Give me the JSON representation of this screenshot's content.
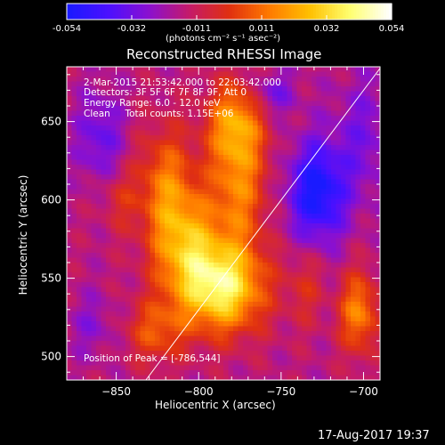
{
  "chart_data": {
    "type": "heatmap",
    "title": "Reconstructed RHESSI Image",
    "xlabel": "Heliocentric X (arcsec)",
    "ylabel": "Heliocentric Y (arcsec)",
    "xlim": [
      -880,
      -690
    ],
    "ylim": [
      485,
      685
    ],
    "xticks": [
      -850,
      -800,
      -750,
      -700
    ],
    "yticks": [
      500,
      550,
      600,
      650
    ],
    "colorbar": {
      "min": -0.054,
      "max": 0.054,
      "ticks": [
        "-0.054",
        "-0.032",
        "-0.011",
        "0.011",
        "0.032",
        "0.054"
      ],
      "label": "(photons cm⁻² s⁻¹ asec⁻²)",
      "colors": [
        "#1a1aff",
        "#4b10ff",
        "#8a10d0",
        "#c41a6a",
        "#e03010",
        "#ff7a00",
        "#ffc000",
        "#ffff70",
        "#ffffff"
      ]
    },
    "annotations": [
      "2-Mar-2015 21:53:42.000 to 22:03:42.000",
      "Detectors: 3F 5F 6F 7F 8F 9F, Att 0",
      "Energy Range: 6.0 - 12.0 keV",
      "Clean     Total counts: 1.15E+06"
    ],
    "peak_text": "Position of Peak = [-786,544]",
    "peak": [
      -786,
      544
    ],
    "limb_line": {
      "from": [
        -832,
        485
      ],
      "to": [
        -690,
        684
      ]
    },
    "sources": [
      {
        "x": -786,
        "y": 544,
        "sx": 18,
        "sy": 20,
        "amp": 0.054
      },
      {
        "x": -808,
        "y": 572,
        "sx": 14,
        "sy": 24,
        "amp": 0.034
      },
      {
        "x": -776,
        "y": 610,
        "sx": 12,
        "sy": 30,
        "amp": 0.03
      },
      {
        "x": -778,
        "y": 650,
        "sx": 12,
        "sy": 18,
        "amp": 0.03
      },
      {
        "x": -820,
        "y": 610,
        "sx": 12,
        "sy": 26,
        "amp": 0.026
      },
      {
        "x": -826,
        "y": 516,
        "sx": 12,
        "sy": 14,
        "amp": 0.022
      },
      {
        "x": -703,
        "y": 528,
        "sx": 8,
        "sy": 18,
        "amp": 0.032
      },
      {
        "x": -735,
        "y": 545,
        "sx": 8,
        "sy": 18,
        "amp": 0.012
      },
      {
        "x": -848,
        "y": 600,
        "sx": 8,
        "sy": 14,
        "amp": 0.012
      },
      {
        "x": -728,
        "y": 605,
        "sx": 12,
        "sy": 22,
        "amp": -0.04
      },
      {
        "x": -755,
        "y": 668,
        "sx": 10,
        "sy": 10,
        "amp": -0.016
      },
      {
        "x": -860,
        "y": 640,
        "sx": 10,
        "sy": 20,
        "amp": -0.018
      },
      {
        "x": -700,
        "y": 640,
        "sx": 12,
        "sy": 28,
        "amp": -0.014
      },
      {
        "x": -865,
        "y": 520,
        "sx": 10,
        "sy": 14,
        "amp": -0.01
      }
    ],
    "background": -0.016
  },
  "footer": {
    "timestamp": "17-Aug-2017 19:37"
  }
}
